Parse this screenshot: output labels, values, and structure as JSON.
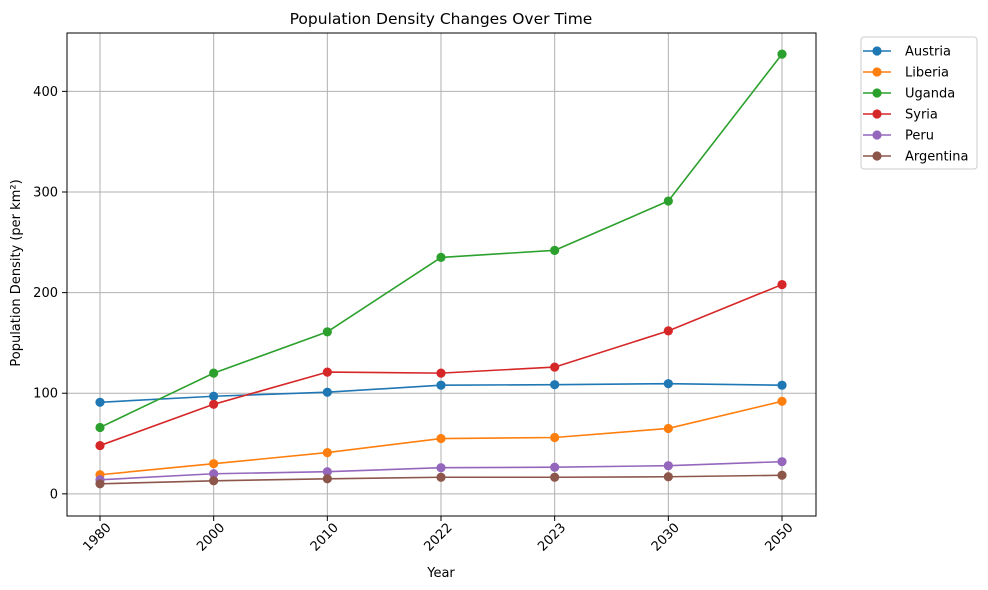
{
  "chart_data": {
    "type": "line",
    "title": "Population Density Changes Over Time",
    "xlabel": "Year",
    "ylabel": "Population Density (per km²)",
    "categories": [
      "1980",
      "2000",
      "2010",
      "2022",
      "2023",
      "2030",
      "2050"
    ],
    "ylim": [
      -22,
      458
    ],
    "yticks": [
      0,
      100,
      200,
      300,
      400
    ],
    "grid": true,
    "legend_position": "outside-top-right",
    "series": [
      {
        "name": "Austria",
        "color": "#1f77b4",
        "values": [
          91,
          97,
          101,
          108,
          108.5,
          109.5,
          108
        ]
      },
      {
        "name": "Liberia",
        "color": "#ff7f0e",
        "values": [
          19,
          30,
          41,
          55,
          56,
          65,
          92
        ]
      },
      {
        "name": "Uganda",
        "color": "#2ca02c",
        "values": [
          66,
          120,
          161,
          235,
          242,
          291,
          437
        ]
      },
      {
        "name": "Syria",
        "color": "#d62728",
        "values": [
          48,
          89,
          121,
          120,
          126,
          162,
          208
        ]
      },
      {
        "name": "Peru",
        "color": "#9467bd",
        "values": [
          14,
          20,
          22,
          26,
          26.5,
          28,
          32
        ]
      },
      {
        "name": "Argentina",
        "color": "#8c564b",
        "values": [
          10,
          13,
          15,
          16.5,
          16.5,
          17,
          18.5
        ]
      }
    ]
  }
}
